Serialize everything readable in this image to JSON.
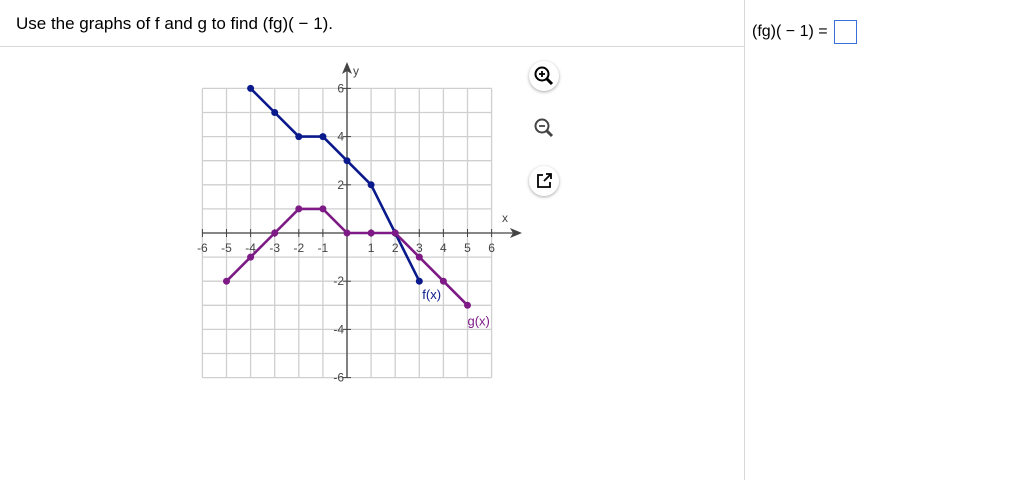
{
  "question": "Use the graphs of f and g to find (fg)( − 1).",
  "answer": {
    "label": "(fg)( − 1) =",
    "value": ""
  },
  "tools": [
    "zoom-in-icon",
    "zoom-out-icon",
    "popout-icon"
  ],
  "chart_data": {
    "type": "line",
    "xlabel": "x",
    "ylabel": "y",
    "xlim": [
      -6,
      6
    ],
    "ylim": [
      -6,
      6
    ],
    "xticks": [
      "-6",
      "-5",
      "-4",
      "-3",
      "-2",
      "-1",
      "1",
      "2",
      "3",
      "4",
      "5",
      "6"
    ],
    "yticks": [
      "6",
      "4",
      "2",
      "-2",
      "-4",
      "-6"
    ],
    "grid": true,
    "series": [
      {
        "name": "f(x)",
        "color": "#0a1a8c",
        "points": [
          [
            -4,
            6
          ],
          [
            -3,
            5
          ],
          [
            -2,
            4
          ],
          [
            -1,
            4
          ],
          [
            0,
            3
          ],
          [
            1,
            2
          ],
          [
            2,
            0
          ],
          [
            3,
            -2
          ]
        ]
      },
      {
        "name": "g(x)",
        "color": "#7d1a85",
        "points": [
          [
            -5,
            -2
          ],
          [
            -4,
            -1
          ],
          [
            -3,
            0
          ],
          [
            -2,
            1
          ],
          [
            -1,
            1
          ],
          [
            0,
            0
          ],
          [
            1,
            0
          ],
          [
            2,
            0
          ],
          [
            3,
            -1
          ],
          [
            4,
            -2
          ],
          [
            5,
            -3
          ]
        ]
      }
    ]
  }
}
